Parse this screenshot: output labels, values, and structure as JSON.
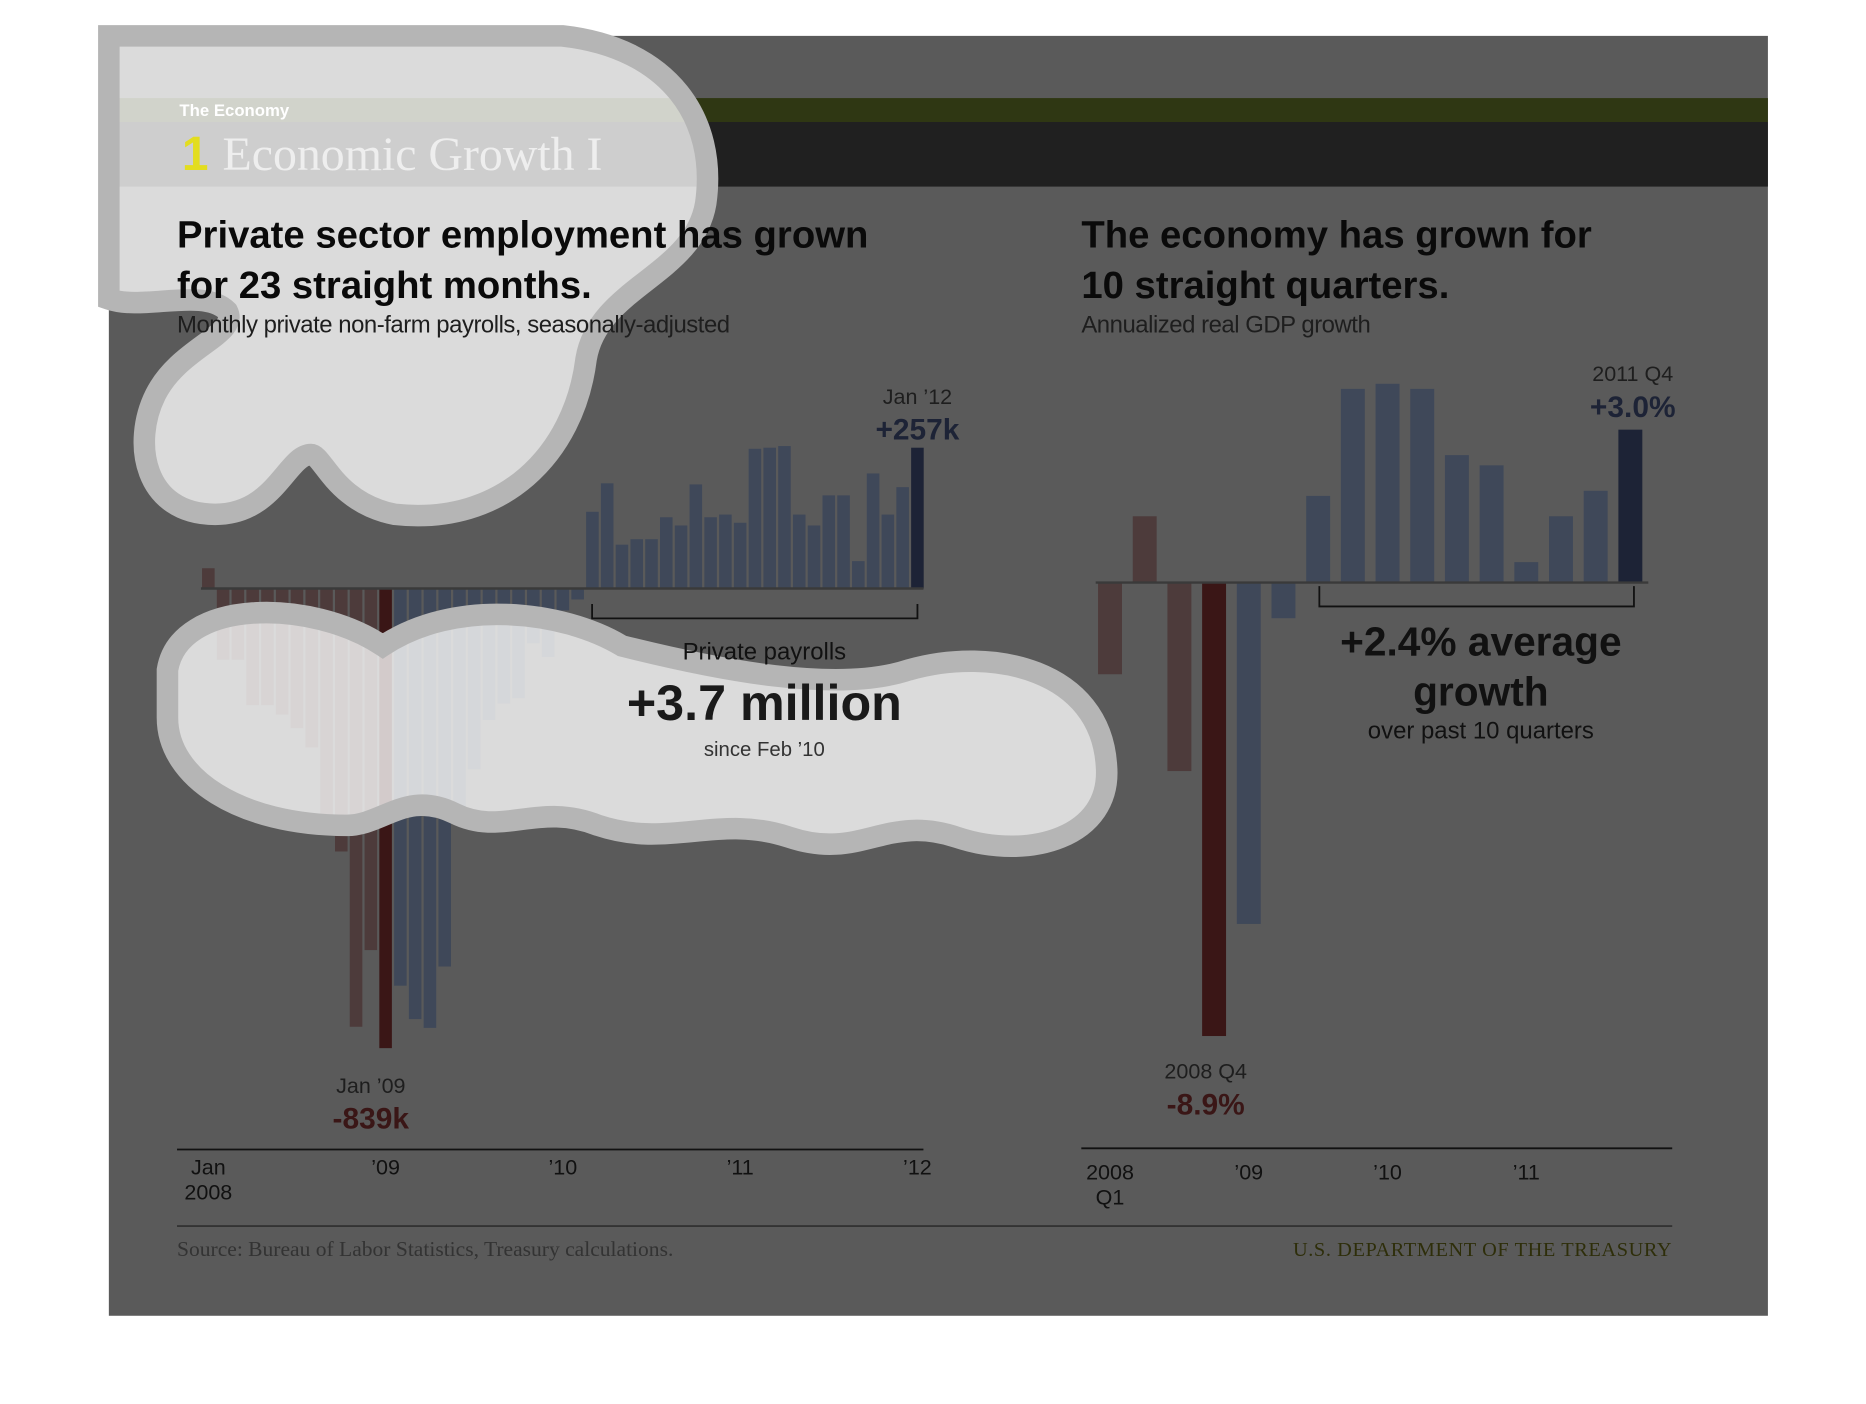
{
  "header": {
    "section": "The Economy",
    "number": "1",
    "title": "Economic Growth I"
  },
  "chart_data": [
    {
      "type": "bar",
      "title": "Private sector employment has grown\nfor 23 straight months.",
      "subtitle": "Monthly private non-farm payrolls, seasonally-adjusted",
      "categories": [
        "Jan\n2008",
        null,
        null,
        null,
        null,
        null,
        null,
        null,
        null,
        null,
        null,
        null,
        "’09",
        null,
        null,
        null,
        null,
        null,
        null,
        null,
        null,
        null,
        null,
        null,
        "’10",
        null,
        null,
        null,
        null,
        null,
        null,
        null,
        null,
        null,
        null,
        null,
        "’11",
        null,
        null,
        null,
        null,
        null,
        null,
        null,
        null,
        null,
        null,
        null,
        "’12"
      ],
      "values": [
        37,
        -130,
        -130,
        -213,
        -213,
        -230,
        -255,
        -290,
        -425,
        -480,
        -800,
        -660,
        -839,
        -725,
        -786,
        -802,
        -690,
        -425,
        -330,
        -240,
        -210,
        -200,
        -100,
        -125,
        -40,
        -20,
        140,
        192,
        80,
        90,
        90,
        130,
        115,
        190,
        130,
        135,
        120,
        255,
        257,
        260,
        135,
        115,
        170,
        170,
        50,
        210,
        135,
        185,
        257
      ],
      "colors": [
        "#4d3b3b",
        "#4d3b3b",
        "#4d3b3b",
        "#4d3b3b",
        "#4d3b3b",
        "#4d3b3b",
        "#4d3b3b",
        "#4d3b3b",
        "#4d3b3b",
        "#4d3b3b",
        "#4d3b3b",
        "#4d3b3b",
        "#3a1616",
        "#3f4859",
        "#3f4859",
        "#3f4859",
        "#3f4859",
        "#3f4859",
        "#3f4859",
        "#3f4859",
        "#3f4859",
        "#3f4859",
        "#3f4859",
        "#3f4859",
        "#3f4859",
        "#3f4859",
        "#3f4859",
        "#3f4859",
        "#3f4859",
        "#3f4859",
        "#3f4859",
        "#3f4859",
        "#3f4859",
        "#3f4859",
        "#3f4859",
        "#3f4859",
        "#3f4859",
        "#3f4859",
        "#3f4859",
        "#3f4859",
        "#3f4859",
        "#3f4859",
        "#3f4859",
        "#3f4859",
        "#3f4859",
        "#3f4859",
        "#3f4859",
        "#3f4859",
        "#1d2336"
      ],
      "ylim": [
        -900,
        300
      ],
      "annotations": [
        {
          "label": "Jan ’12",
          "text": "+257k"
        },
        {
          "label": "Jan ’09",
          "text": "-839k"
        }
      ],
      "callout": {
        "label": "Private payrolls",
        "text": "+3.7 million",
        "note": "since Feb ’10"
      }
    },
    {
      "type": "bar",
      "title": "The economy has grown for\n10 straight quarters.",
      "subtitle": "Annualized real GDP growth",
      "categories": [
        "2008\nQ1",
        null,
        null,
        null,
        "’09",
        null,
        null,
        null,
        "’10",
        null,
        null,
        null,
        "’11",
        null,
        null,
        null
      ],
      "values": [
        -1.8,
        1.3,
        -3.7,
        -8.9,
        -6.7,
        -0.7,
        1.7,
        3.8,
        3.9,
        3.8,
        2.5,
        2.3,
        0.4,
        1.3,
        1.8,
        3.0
      ],
      "colors": [
        "#4d3b3b",
        "#4d3b3b",
        "#4d3b3b",
        "#3a1616",
        "#3f4859",
        "#3f4859",
        "#3f4859",
        "#3f4859",
        "#3f4859",
        "#3f4859",
        "#3f4859",
        "#3f4859",
        "#3f4859",
        "#3f4859",
        "#3f4859",
        "#1d2336"
      ],
      "ylim": [
        -10,
        4
      ],
      "annotations": [
        {
          "label": "2011 Q4",
          "text": "+3.0%"
        },
        {
          "label": "2008 Q4",
          "text": "-8.9%"
        }
      ],
      "callout": {
        "text": "+2.4% average\ngrowth",
        "note": "over past 10 quarters"
      }
    }
  ],
  "footer": {
    "source": "Source: Bureau of Labor Statistics, Treasury calculations.",
    "agency": "U.S. DEPARTMENT OF THE TREASURY"
  }
}
